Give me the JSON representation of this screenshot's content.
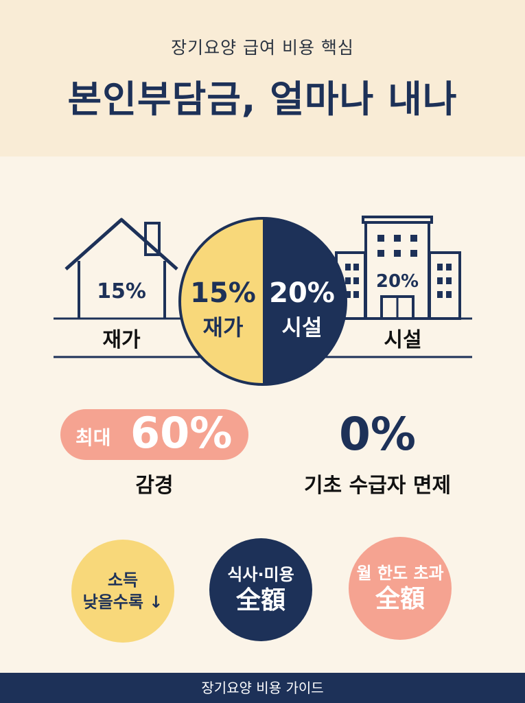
{
  "header": {
    "subtitle": "장기요양 급여 비용 핵심",
    "title": "본인부담금, 얼마나 내나"
  },
  "home": {
    "percent": "15%",
    "label": "재가"
  },
  "facility": {
    "percent": "20%",
    "label": "시설"
  },
  "pie": {
    "left_percent": "15%",
    "left_label": "재가",
    "right_percent": "20%",
    "right_label": "시설"
  },
  "reduction": {
    "prefix": "최대",
    "value": "60%",
    "label": "감경"
  },
  "exemption": {
    "value": "0%",
    "label": "기초 수급자 면제"
  },
  "circles": [
    {
      "line1": "소득",
      "line2": "낮을수록 ↓"
    },
    {
      "line1": "식사·미용",
      "line2": "全額"
    },
    {
      "line1": "월 한도 초과",
      "line2": "全額"
    }
  ],
  "footer": {
    "text": "장기요양 비용 가이드"
  },
  "colors": {
    "navy": "#1d3158",
    "yellow": "#f8d87a",
    "salmon": "#f5a391",
    "cream": "#fbf4e8"
  }
}
